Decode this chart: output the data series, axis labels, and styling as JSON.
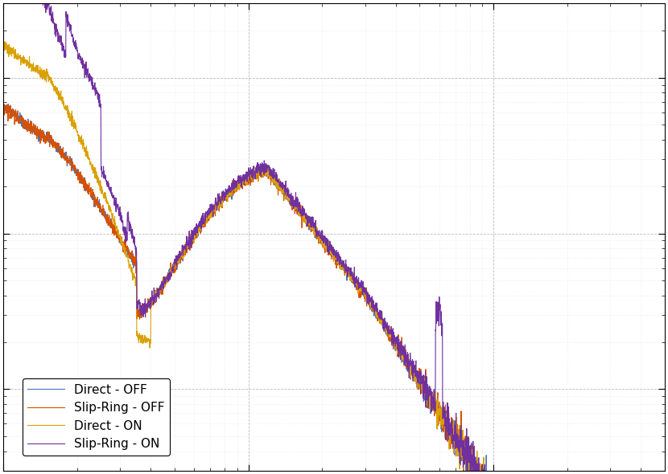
{
  "colors": {
    "direct_off": "#4472C4",
    "slipring_off": "#D55000",
    "direct_on": "#DAA000",
    "slipring_on": "#7030A0"
  },
  "legend": {
    "direct_off": "Direct - OFF",
    "slipring_off": "Slip-Ring - OFF",
    "direct_on": "Direct - ON",
    "slipring_on": "Slip-Ring - ON"
  },
  "background_color": "#ffffff",
  "plot_background": "#ffffff",
  "linewidth": 0.8,
  "grid_color": "#bbbbbb",
  "legend_loc": "lower left",
  "legend_fontsize": 11
}
